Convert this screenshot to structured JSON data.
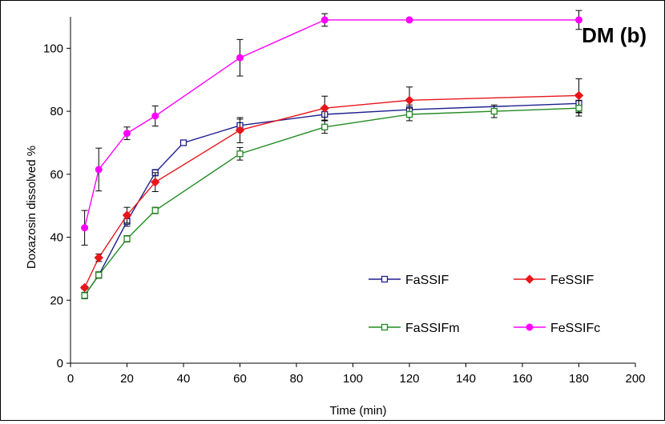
{
  "chart_data": {
    "type": "line",
    "title": "DM (b)",
    "xlabel": "Time (min)",
    "ylabel": "Doxazosin dissolved %",
    "xlim": [
      0,
      200
    ],
    "ylim": [
      0,
      110
    ],
    "x_ticks": [
      0,
      20,
      40,
      60,
      80,
      100,
      120,
      140,
      160,
      180,
      200
    ],
    "y_ticks": [
      0,
      20,
      40,
      60,
      80,
      100
    ],
    "x_tick_labels": [
      "0",
      "20",
      "40",
      "60",
      "80",
      "100",
      "120",
      "140",
      "160",
      "180",
      "200"
    ],
    "y_tick_labels": [
      "0",
      "20",
      "40",
      "60",
      "80",
      "100"
    ],
    "grid": false,
    "legend_position": "center-right",
    "series": [
      {
        "name": "FaSSIF",
        "color": "#1f1f8f",
        "marker": "square-open",
        "x": [
          5,
          10,
          20,
          30,
          40,
          60,
          90,
          120,
          180
        ],
        "y": [
          21.5,
          28,
          45,
          60.5,
          70,
          75.5,
          79,
          80.5,
          82.5
        ],
        "err": [
          1,
          1,
          1.5,
          1,
          0,
          2,
          2,
          1.5,
          3
        ]
      },
      {
        "name": "FeSSIF",
        "color": "#e8161b",
        "marker": "diamond",
        "x": [
          5,
          10,
          20,
          30,
          60,
          90,
          120,
          180
        ],
        "y": [
          24,
          33.5,
          47,
          57.5,
          74,
          81,
          83.5,
          85
        ],
        "err": [
          0.5,
          1.2,
          2.5,
          3,
          4,
          3.8,
          4.2,
          5.3
        ]
      },
      {
        "name": "FaSSIFm",
        "color": "#228b22",
        "marker": "square-open",
        "x": [
          5,
          10,
          20,
          30,
          60,
          90,
          120,
          150,
          180
        ],
        "y": [
          21.5,
          28,
          39.5,
          48.5,
          66.5,
          75,
          79,
          80,
          81
        ],
        "err": [
          1,
          1,
          1,
          1,
          2,
          2,
          2,
          2,
          2.5
        ]
      },
      {
        "name": "FeSSIFc",
        "color": "#ff00ff",
        "marker": "circle",
        "x": [
          5,
          10,
          20,
          30,
          60,
          90,
          120,
          180
        ],
        "y": [
          43,
          61.5,
          73,
          78.5,
          97,
          109,
          109,
          109
        ],
        "err": [
          5.5,
          6.8,
          2,
          3.2,
          5.8,
          2,
          0.5,
          3
        ]
      }
    ]
  }
}
